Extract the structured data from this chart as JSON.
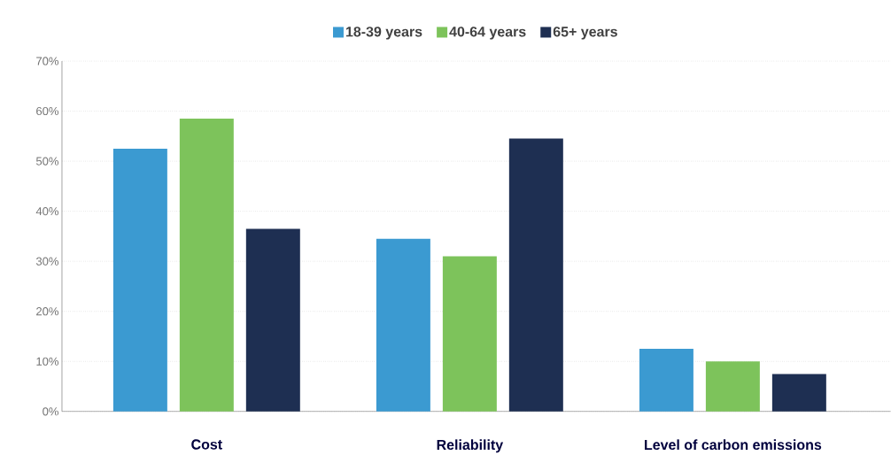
{
  "chart_data": {
    "type": "bar",
    "categories": [
      "Cost",
      "Reliability",
      "Level of carbon emissions"
    ],
    "series": [
      {
        "name": "18-39 years",
        "color": "#3b9ad1",
        "values": [
          52.5,
          34.5,
          12.5
        ]
      },
      {
        "name": "40-64 years",
        "color": "#7dc35b",
        "values": [
          58.5,
          31,
          10
        ]
      },
      {
        "name": "65+ years",
        "color": "#1e2f52",
        "values": [
          36.5,
          54.5,
          7.5
        ]
      }
    ],
    "ylim": [
      0,
      70
    ],
    "yticks": [
      {
        "value": 0,
        "label": "0%"
      },
      {
        "value": 10,
        "label": "10%"
      },
      {
        "value": 20,
        "label": "20%"
      },
      {
        "value": 30,
        "label": "30%"
      },
      {
        "value": 40,
        "label": "40%"
      },
      {
        "value": 50,
        "label": "50%"
      },
      {
        "value": 60,
        "label": "60%"
      },
      {
        "value": 70,
        "label": "70%"
      }
    ],
    "grid": "y",
    "legend": "top"
  }
}
